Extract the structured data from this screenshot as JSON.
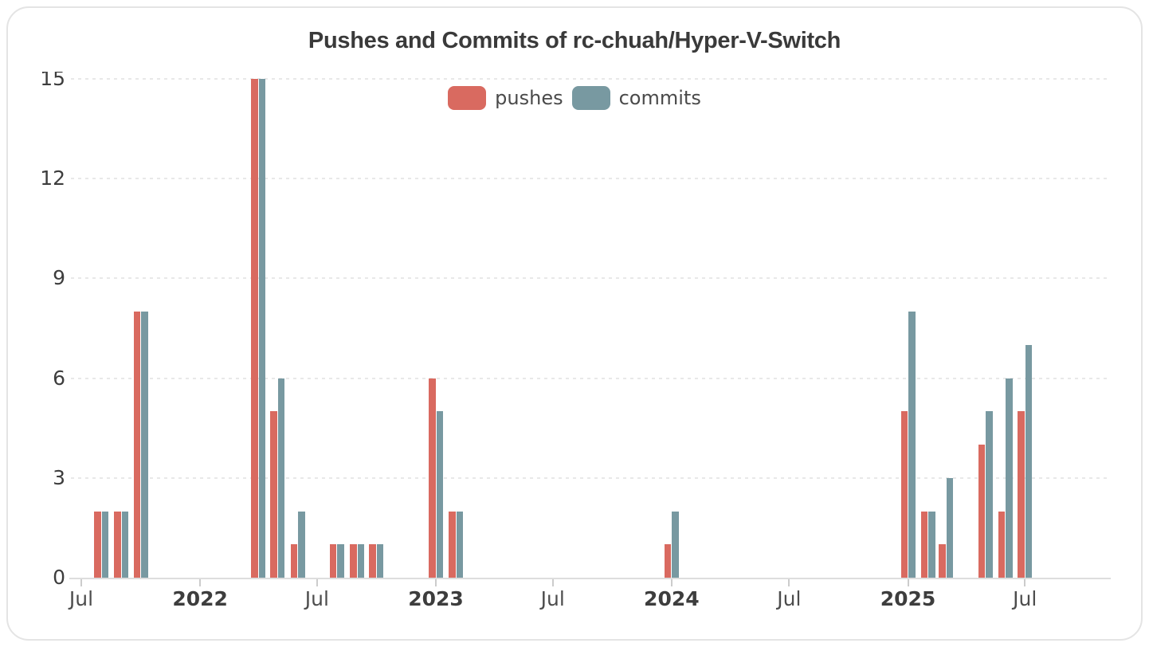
{
  "chart_data": {
    "type": "bar",
    "title": "Pushes and Commits of rc-chuah/Hyper-V-Switch",
    "xlabel": "",
    "ylabel": "",
    "ylim": [
      0,
      15
    ],
    "yticks": [
      0,
      3,
      6,
      9,
      12,
      15
    ],
    "grid": "dashed-horizontal",
    "legend_position": "top-center",
    "x_type": "time-monthly",
    "categories": [
      "2021-08-01",
      "2021-09-01",
      "2021-10-01",
      "2022-04-01",
      "2022-05-01",
      "2022-06-01",
      "2022-08-01",
      "2022-09-01",
      "2022-10-01",
      "2023-01-01",
      "2023-02-01",
      "2024-01-01",
      "2025-01-01",
      "2025-02-01",
      "2025-03-01",
      "2025-05-01",
      "2025-06-01",
      "2025-07-01"
    ],
    "series": [
      {
        "name": "pushes",
        "color": "#d96a60",
        "values": [
          2,
          2,
          8,
          15,
          5,
          1,
          1,
          1,
          1,
          6,
          2,
          1,
          5,
          2,
          1,
          4,
          2,
          5
        ]
      },
      {
        "name": "commits",
        "color": "#7899a1",
        "values": [
          2,
          2,
          8,
          15,
          6,
          2,
          1,
          1,
          1,
          5,
          2,
          2,
          8,
          2,
          3,
          5,
          6,
          7
        ]
      }
    ],
    "xticks": [
      {
        "date": "2021-07-01",
        "label": "Jul",
        "bold": false
      },
      {
        "date": "2022-01-01",
        "label": "2022",
        "bold": true
      },
      {
        "date": "2022-07-01",
        "label": "Jul",
        "bold": false
      },
      {
        "date": "2023-01-01",
        "label": "2023",
        "bold": true
      },
      {
        "date": "2023-07-01",
        "label": "Jul",
        "bold": false
      },
      {
        "date": "2024-01-01",
        "label": "2024",
        "bold": true
      },
      {
        "date": "2024-07-01",
        "label": "Jul",
        "bold": false
      },
      {
        "date": "2025-01-01",
        "label": "2025",
        "bold": true
      },
      {
        "date": "2025-07-01",
        "label": "Jul",
        "bold": false
      }
    ]
  },
  "colors": {
    "card_border": "#e4e4e4",
    "grid": "#e8e8e8",
    "axis": "#dddddd",
    "tick": "#cccccc",
    "title": "#3a3a3a",
    "axis_label": "#3d3d3d",
    "jul_label": "#4d4d4d",
    "legend_label": "#4a4a4a"
  }
}
